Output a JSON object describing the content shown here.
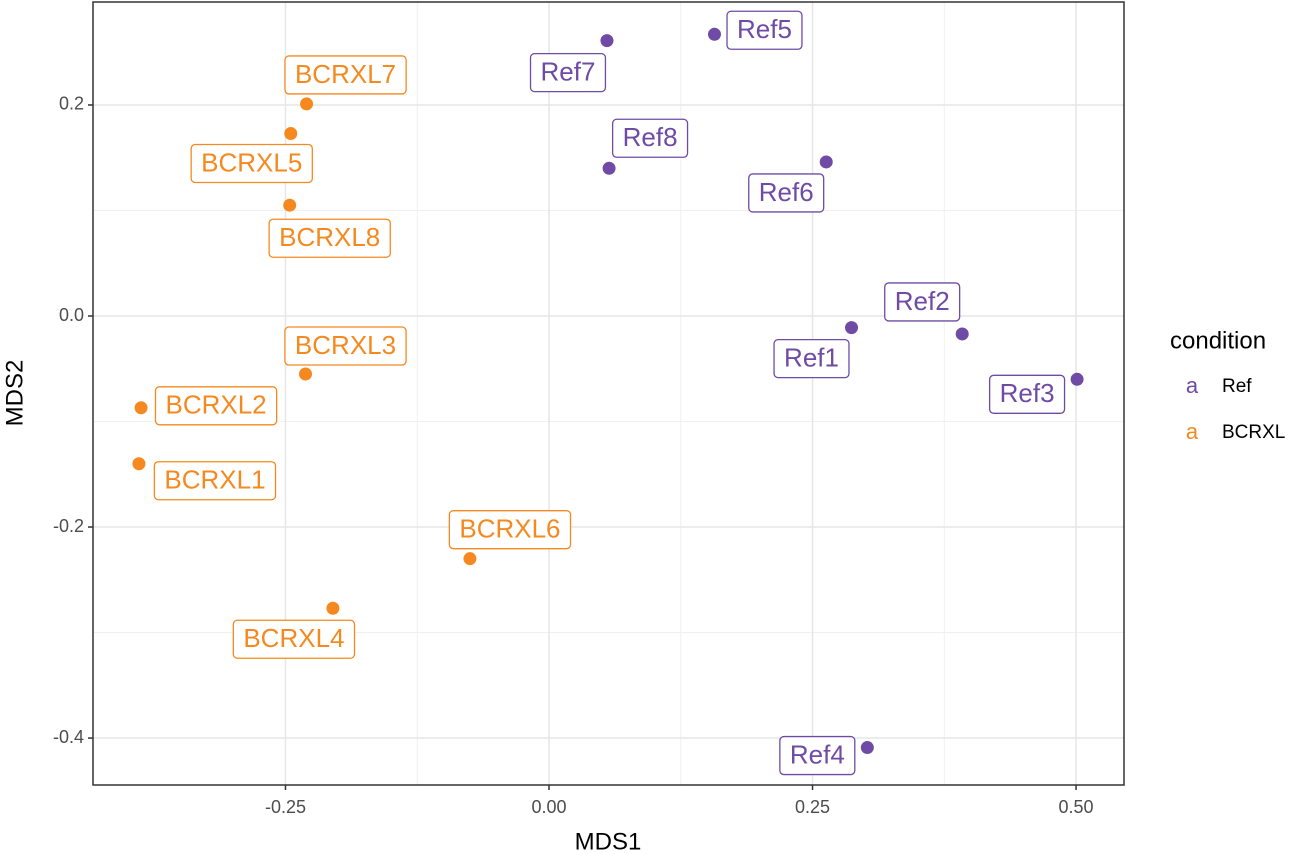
{
  "chart_data": {
    "type": "scatter",
    "x_label": "MDS1",
    "y_label": "MDS2",
    "xlim": [
      -0.4326,
      0.5455
    ],
    "ylim": [
      -0.4445,
      0.2976
    ],
    "xticks": [
      -0.25,
      {
        "value": 0,
        "label": "0.00"
      },
      0.25,
      {
        "value": 0.5,
        "label": "0.50"
      }
    ],
    "yticks": [
      -0.4,
      -0.2,
      {
        "value": 0,
        "label": "0.0"
      },
      0.2
    ],
    "grid": true,
    "legend": {
      "title": "condition",
      "key_glyph": "a",
      "position": "right"
    },
    "series": [
      {
        "name": "Ref",
        "color": "#6f4ba6",
        "labels": [
          "Ref1",
          "Ref2",
          "Ref3",
          "Ref4",
          "Ref5",
          "Ref6",
          "Ref7",
          "Ref8"
        ],
        "x": [
          0.287,
          0.392,
          0.501,
          0.302,
          0.157,
          0.263,
          0.055,
          0.057
        ],
        "values": [
          -0.011,
          -0.017,
          -0.06,
          -0.409,
          0.267,
          0.146,
          0.261,
          0.14
        ]
      },
      {
        "name": "BCRXL",
        "color": "#f5891f",
        "labels": [
          "BCRXL1",
          "BCRXL2",
          "BCRXL3",
          "BCRXL4",
          "BCRXL5",
          "BCRXL6",
          "BCRXL7",
          "BCRXL8"
        ],
        "x": [
          -0.389,
          -0.387,
          -0.231,
          -0.205,
          -0.245,
          -0.075,
          -0.23,
          -0.246
        ],
        "values": [
          -0.14,
          -0.087,
          -0.055,
          -0.277,
          0.173,
          -0.23,
          0.201,
          0.105
        ]
      }
    ]
  }
}
